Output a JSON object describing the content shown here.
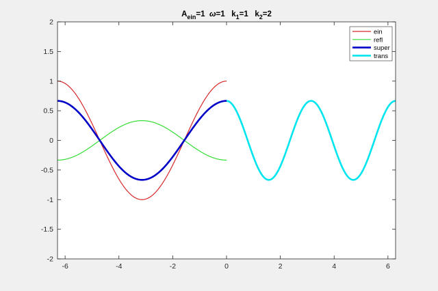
{
  "chart_data": {
    "type": "line",
    "title": {
      "main": "A",
      "sub_ein": "ein",
      "eq1": "=1  ",
      "omega": "ω",
      "eq2": "=1   k",
      "sub_1": "1",
      "eq3": "=1   k",
      "sub_2": "2",
      "eq4": "=2"
    },
    "xlim": [
      -6.2832,
      6.2832
    ],
    "ylim": [
      -2,
      2
    ],
    "x_ticks": [
      -6,
      -4,
      -2,
      0,
      2,
      4,
      6
    ],
    "x_tick_labels": [
      "-6",
      "-4",
      "-2",
      "0",
      "2",
      "4",
      "6"
    ],
    "y_ticks": [
      -2,
      -1.5,
      -1,
      -0.5,
      0,
      0.5,
      1,
      1.5,
      2
    ],
    "y_tick_labels": [
      "-2",
      "-1.5",
      "-1",
      "-0.5",
      "0",
      "0.5",
      "1",
      "1.5",
      "2"
    ],
    "grid": false,
    "legend_position": "top-right",
    "params": {
      "A_ein": 1,
      "omega": 1,
      "k1": 1,
      "k2": 2
    },
    "series": [
      {
        "name": "ein",
        "color": "#d62728",
        "width": 1.2,
        "x_range": [
          -6.2832,
          0
        ],
        "y_at_x_min": 1.0,
        "y_at_x_max": 1.0,
        "min": -1.0,
        "max": 1.0
      },
      {
        "name": "refl",
        "color": "#33dd33",
        "width": 1.2,
        "x_range": [
          -6.2832,
          0
        ],
        "y_at_x_min": -0.333,
        "y_at_x_max": -0.333,
        "min": -0.333,
        "max": 0.333
      },
      {
        "name": "super",
        "color": "#0000c8",
        "width": 2.6,
        "x_range": [
          -6.2832,
          0
        ],
        "y_at_x_min": 0.667,
        "y_at_x_max": 0.667,
        "min": -0.667,
        "max": 0.667
      },
      {
        "name": "trans",
        "color": "#00e5ee",
        "width": 2.6,
        "x_range": [
          0,
          6.2832
        ],
        "y_at_x_min": 0.667,
        "y_at_x_max": 0.667,
        "min": -0.667,
        "max": 0.667
      }
    ]
  }
}
